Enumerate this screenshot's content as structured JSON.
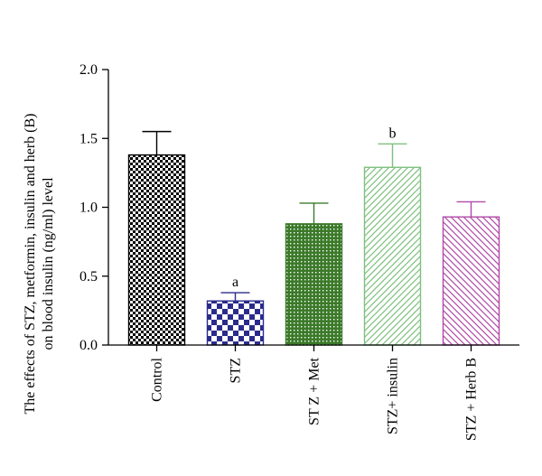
{
  "chart_data": {
    "type": "bar",
    "title": "",
    "xlabel": "",
    "ylabel_lines": [
      "The effects of STZ, metformin, insulin and herb (B)",
      "on blood insulin (ng/ml) level"
    ],
    "ylim": [
      0,
      2.0
    ],
    "yticks": [
      "0.0",
      "0.5",
      "1.0",
      "1.5",
      "2.0"
    ],
    "categories": [
      "Control",
      "STZ",
      "ST Z + Met",
      "STZ+ insulin",
      "STZ + Herb B"
    ],
    "values": [
      1.38,
      0.32,
      0.88,
      1.29,
      0.93
    ],
    "errors": [
      0.17,
      0.06,
      0.15,
      0.17,
      0.11
    ],
    "annotations": [
      "",
      "a",
      "",
      "b",
      ""
    ],
    "bar_colors": [
      "#000000",
      "#2b2b8c",
      "#3c7a2a",
      "#7ec07e",
      "#b04aa8"
    ],
    "bar_patterns": [
      "checker-fine",
      "checker-large",
      "grid-dense",
      "diagonal-up",
      "diagonal-down"
    ],
    "grid": false,
    "legend": "none"
  }
}
